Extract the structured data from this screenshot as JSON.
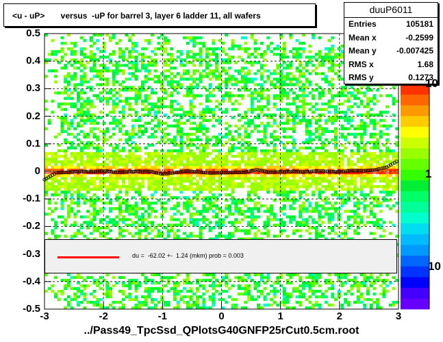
{
  "title": "<u - uP>       versus  -uP for barrel 3, layer 6 ladder 11, all wafers",
  "stats": {
    "name": "duuP6011",
    "rows": [
      {
        "label": "Entries",
        "value": "105181"
      },
      {
        "label": "Mean x",
        "value": "-0.2599"
      },
      {
        "label": "Mean y",
        "value": "-0.007425"
      },
      {
        "label": "RMS x",
        "value": "1.68"
      },
      {
        "label": "RMS y",
        "value": "0.1273"
      }
    ]
  },
  "fit": {
    "text": "du =  -62.02 +-  1.24 (mkm) prob = 0.003",
    "line_color": "#ff0000"
  },
  "chart_data": {
    "type": "heatmap",
    "title": "<u - uP>       versus  -uP for barrel 3, layer 6 ladder 11, all wafers",
    "xlabel": "../Pass49_TpcSsd_QPlotsG40GNFP25rCut0.5cm.root",
    "ylabel": "",
    "xlim": [
      -3,
      3
    ],
    "ylim": [
      -0.5,
      0.5
    ],
    "x_ticks": [
      "-3",
      "-2",
      "-1",
      "0",
      "1",
      "2",
      "3"
    ],
    "y_ticks": [
      "-0.5",
      "-0.4",
      "-0.3",
      "-0.2",
      "-0.1",
      "0",
      "0.1",
      "0.2",
      "0.3",
      "0.4",
      "0.5"
    ],
    "z_ticks": [
      "10",
      "1",
      "10"
    ],
    "grid": true,
    "colorbar_colors": [
      "#6600ff",
      "#4400ff",
      "#0000ff",
      "#0033ff",
      "#0066ff",
      "#0099ff",
      "#00bbff",
      "#00ddee",
      "#00ffcc",
      "#00ff99",
      "#00ff66",
      "#00ee33",
      "#33ff00",
      "#66ff00",
      "#99ff00",
      "#ccff00",
      "#ffff00",
      "#ffcc00",
      "#ff9900",
      "#ff6600",
      "#ff3300"
    ],
    "profile_series": {
      "name": "",
      "x": [
        -3.0,
        -2.8,
        -2.6,
        -2.4,
        -2.2,
        -2.0,
        -1.8,
        -1.6,
        -1.4,
        -1.2,
        -1.0,
        -0.8,
        -0.6,
        -0.4,
        -0.2,
        0.0,
        0.2,
        0.4,
        0.6,
        0.8,
        1.0,
        1.2,
        1.4,
        1.6,
        1.8,
        2.0,
        2.2,
        2.4,
        2.6,
        2.8,
        3.0
      ],
      "y": [
        -0.03,
        -0.005,
        -0.003,
        0.0,
        -0.002,
        0.001,
        -0.003,
        -0.002,
        0.0,
        -0.001,
        -0.01,
        -0.005,
        0.001,
        -0.002,
        -0.006,
        -0.005,
        -0.004,
        -0.003,
        0.006,
        -0.003,
        -0.002,
        0.0,
        -0.002,
        0.001,
        0.0,
        -0.002,
        0.003,
        0.002,
        0.005,
        0.015,
        0.04
      ]
    },
    "fit_line": {
      "y": -0.006
    }
  }
}
